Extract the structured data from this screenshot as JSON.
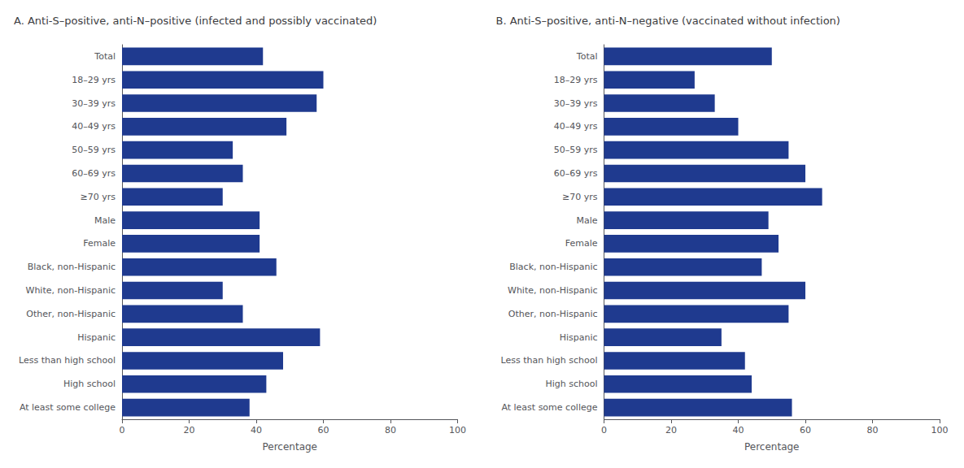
{
  "chart_data": [
    {
      "type": "bar",
      "orientation": "horizontal",
      "title": "A. Anti-S–positive, anti-N–positive (infected and possibly vaccinated)",
      "categories": [
        "Total",
        "18–29 yrs",
        "30–39 yrs",
        "40–49 yrs",
        "50–59 yrs",
        "60–69 yrs",
        "≥70 yrs",
        "Male",
        "Female",
        "Black, non-Hispanic",
        "White, non-Hispanic",
        "Other, non-Hispanic",
        "Hispanic",
        "Less than high school",
        "High school",
        "At least some college"
      ],
      "values": [
        42,
        60,
        58,
        49,
        33,
        36,
        30,
        41,
        41,
        46,
        30,
        36,
        59,
        48,
        43,
        38
      ],
      "color": "#1f3a8f",
      "xlabel": "Percentage",
      "xlim": [
        0,
        100
      ],
      "xticks": [
        0,
        20,
        40,
        60,
        80,
        100
      ],
      "grid": false
    },
    {
      "type": "bar",
      "orientation": "horizontal",
      "title": "B. Anti-S–positive, anti-N–negative (vaccinated without infection)",
      "categories": [
        "Total",
        "18–29 yrs",
        "30–39 yrs",
        "40–49 yrs",
        "50–59 yrs",
        "60–69 yrs",
        "≥70 yrs",
        "Male",
        "Female",
        "Black, non-Hispanic",
        "White, non-Hispanic",
        "Other, non-Hispanic",
        "Hispanic",
        "Less than high school",
        "High school",
        "At least some college"
      ],
      "values": [
        50,
        27,
        33,
        40,
        55,
        60,
        65,
        49,
        52,
        47,
        60,
        55,
        35,
        42,
        44,
        56
      ],
      "color": "#1f3a8f",
      "xlabel": "Percentage",
      "xlim": [
        0,
        100
      ],
      "xticks": [
        0,
        20,
        40,
        60,
        80,
        100
      ],
      "grid": false
    }
  ]
}
